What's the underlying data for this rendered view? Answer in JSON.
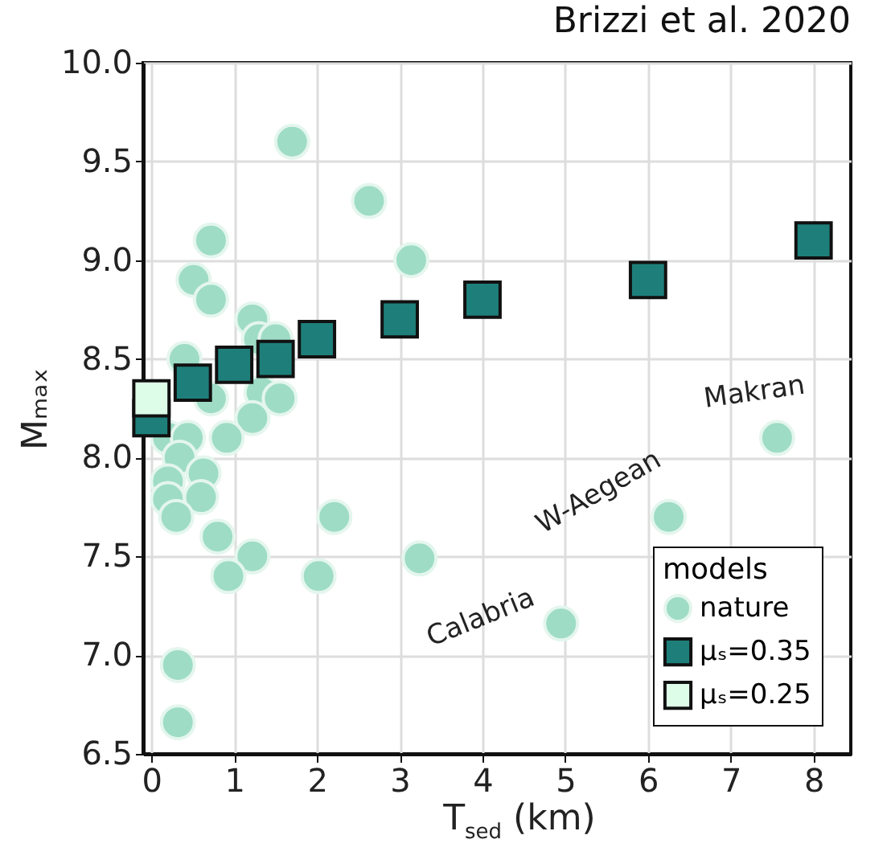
{
  "chart_data": {
    "type": "scatter",
    "title": "Brizzi et al. 2020",
    "xlabel": "T$_{sed}$ (km)",
    "ylabel": "Mₘₐₓ",
    "legend_title": "models",
    "xlim": [
      -0.1,
      8.45
    ],
    "xticks": [
      0,
      1,
      2,
      3,
      4,
      5,
      6,
      7,
      8
    ],
    "ylim": [
      6.5,
      10.0
    ],
    "yticks": [
      {
        "value": 6.5,
        "label": "6.5"
      },
      {
        "value": 7.0,
        "label": "7.0"
      },
      {
        "value": 7.5,
        "label": "7.5"
      },
      {
        "value": 8.0,
        "label": "8.0"
      },
      {
        "value": 8.5,
        "label": "8.5"
      },
      {
        "value": 9.0,
        "label": "9.0"
      },
      {
        "value": 9.5,
        "label": "9.5"
      },
      {
        "value": 10.0,
        "label": "10.0"
      }
    ],
    "grid": true,
    "legend": "bottom right",
    "annotations": [
      {
        "text": "Calabria",
        "x": 4.95,
        "y": 7.16
      },
      {
        "text": "W-Aegean",
        "x": 6.25,
        "y": 7.7
      },
      {
        "text": "Makran",
        "x": 7.56,
        "y": 8.1
      }
    ],
    "series": [
      {
        "name": "nature",
        "color": "#9edcc6",
        "marker": "circle",
        "x": [
          1.7,
          2.63,
          3.14,
          0.72,
          0.51,
          0.72,
          1.22,
          1.3,
          1.5,
          0.4,
          0.72,
          1.33,
          1.55,
          1.22,
          0.91,
          0.2,
          0.44,
          0.34,
          0.2,
          0.63,
          0.2,
          0.6,
          0.3,
          0.8,
          1.22,
          0.93,
          2.02,
          2.21,
          3.24,
          0.32,
          0.32,
          4.95,
          6.25,
          7.56
        ],
        "values": [
          9.6,
          9.3,
          9.0,
          9.1,
          8.9,
          8.8,
          8.7,
          8.6,
          8.6,
          8.5,
          8.3,
          8.33,
          8.3,
          8.2,
          8.1,
          8.1,
          8.1,
          8.0,
          7.88,
          7.92,
          7.79,
          7.8,
          7.7,
          7.6,
          7.5,
          7.4,
          7.4,
          7.7,
          7.49,
          6.95,
          6.66,
          7.16,
          7.7,
          8.1
        ]
      },
      {
        "name": "μₛ=0.35",
        "color": "#1e7f7a",
        "marker": "square",
        "x": [
          0,
          0.5,
          1,
          1.5,
          2,
          3,
          4,
          6,
          8
        ],
        "values": [
          8.2,
          8.38,
          8.47,
          8.5,
          8.6,
          8.7,
          8.8,
          8.9,
          9.1
        ]
      },
      {
        "name": "μₛ=0.25",
        "color": "#ddfde8",
        "marker": "square",
        "x": [
          0
        ],
        "values": [
          8.3
        ]
      }
    ]
  }
}
